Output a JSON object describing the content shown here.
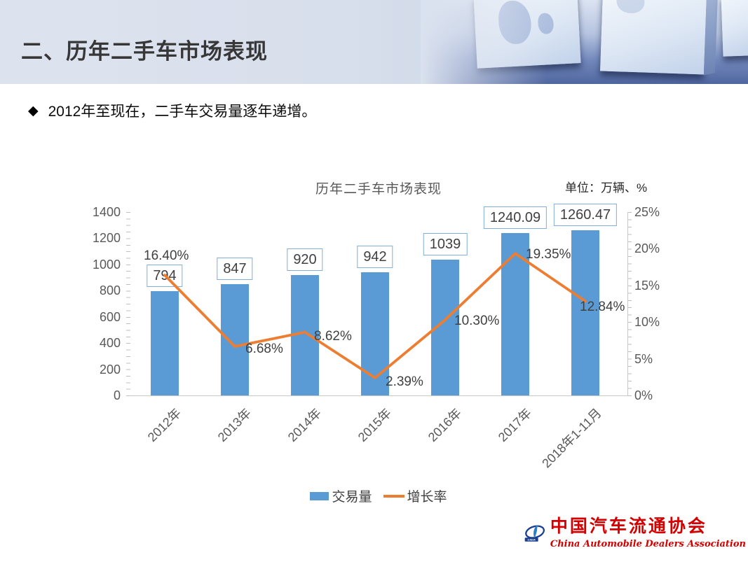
{
  "header": {
    "title": "二、历年二手车市场表现"
  },
  "bullet": {
    "marker": "◆",
    "text": "2012年至现在，二手车交易量逐年递增。"
  },
  "unit_label": "单位：万辆、%",
  "chart_data": {
    "type": "bar",
    "combo": true,
    "title": "历年二手车市场表现",
    "categories": [
      "2012年",
      "2013年",
      "2014年",
      "2015年",
      "2016年",
      "2017年",
      "2018年1-11月"
    ],
    "series": [
      {
        "name": "交易量",
        "type": "bar",
        "axis": "left",
        "color": "#5B9BD5",
        "values": [
          794,
          847,
          920,
          942,
          1039,
          1240.09,
          1260.47
        ],
        "labels": [
          "794",
          "847",
          "920",
          "942",
          "1039",
          "1240.09",
          "1260.47"
        ]
      },
      {
        "name": "增长率",
        "type": "line",
        "axis": "right",
        "color": "#ED7D31",
        "values": [
          16.4,
          6.68,
          8.62,
          2.39,
          10.3,
          19.35,
          12.84
        ],
        "labels": [
          "16.40%",
          "6.68%",
          "8.62%",
          "2.39%",
          "10.30%",
          "19.35%",
          "12.84%"
        ]
      }
    ],
    "left_axis": {
      "min": 0,
      "max": 1400,
      "step": 200,
      "ticks": [
        "0",
        "200",
        "400",
        "600",
        "800",
        "1000",
        "1200",
        "1400"
      ]
    },
    "right_axis": {
      "min": 0,
      "max": 25,
      "step": 5,
      "ticks": [
        "0%",
        "5%",
        "10%",
        "15%",
        "20%",
        "25%"
      ]
    },
    "legend": [
      {
        "label": "交易量",
        "swatch": "bar",
        "color": "#5B9BD5"
      },
      {
        "label": "增长率",
        "swatch": "line",
        "color": "#ED7D31"
      }
    ],
    "grid": false,
    "legend_position": "bottom"
  },
  "logo": {
    "badge": "CADA",
    "name_cn": "中国汽车流通协会",
    "name_en": "China Automobile Dealers Association"
  }
}
